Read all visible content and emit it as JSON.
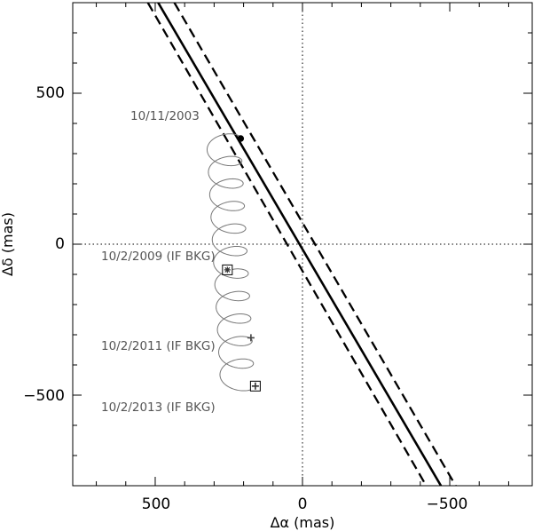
{
  "chart_data": {
    "type": "line",
    "title": "",
    "xlabel": "Δα (mas)",
    "ylabel": "Δδ (mas)",
    "xlim": [
      780,
      -780
    ],
    "ylim": [
      -800,
      800
    ],
    "xticks": [
      500,
      0,
      -500
    ],
    "yticks": [
      500,
      0,
      -500
    ],
    "xtick_labels": [
      "500",
      "0",
      "−500"
    ],
    "ytick_labels": [
      "500",
      "0",
      "−500"
    ],
    "grid": false,
    "legend": "none",
    "reference_lines": {
      "x0": 0,
      "y0": 0
    },
    "series": [
      {
        "style": "solid",
        "x": [
          490,
          -470
        ],
        "y": [
          800,
          -800
        ]
      },
      {
        "style": "dashed",
        "x": [
          435,
          -520
        ],
        "y": [
          800,
          -800
        ]
      },
      {
        "style": "dashed",
        "x": [
          525,
          -420
        ],
        "y": [
          800,
          -800
        ]
      }
    ],
    "track": {
      "start": [
        210,
        350
      ],
      "end": [
        162,
        -470
      ],
      "loops": 11,
      "amplitude": 58
    },
    "markers": [
      {
        "label": "10/11/2003",
        "symbol": "filled-circle",
        "x": 210,
        "y": 350
      },
      {
        "label": "10/2/2009 (IF BKG)",
        "symbol": "boxed-star",
        "x": 255,
        "y": -85
      },
      {
        "label": "10/2/2011 (IF BKG)",
        "symbol": "plus",
        "x": 175,
        "y": -310
      },
      {
        "label": "10/2/2013 (IF BKG)",
        "symbol": "boxed-plus",
        "x": 160,
        "y": -470
      }
    ],
    "colors": {
      "lines": "#000000",
      "track": "#777777",
      "annotations": "#555555"
    }
  }
}
